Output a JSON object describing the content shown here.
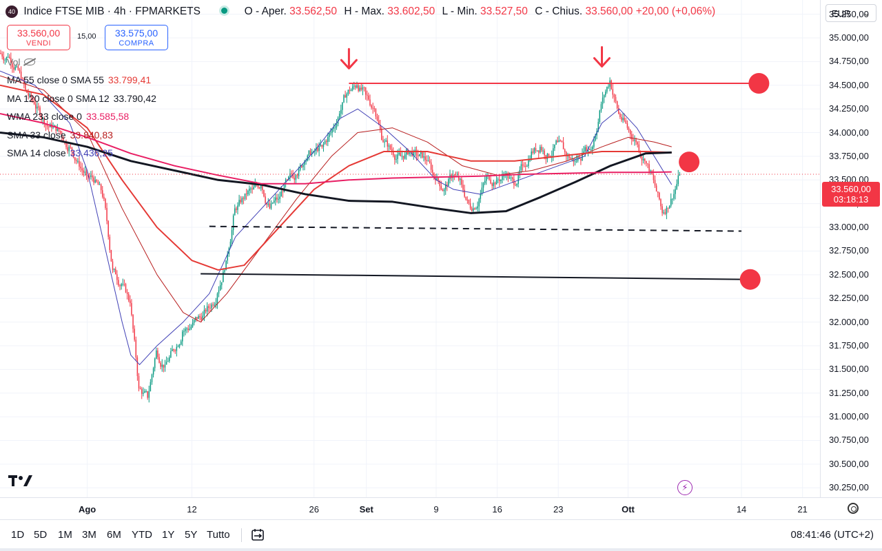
{
  "header": {
    "logo_text": "40",
    "symbol": "Indice FTSE MIB · 4h · FPMARKETS",
    "ohlc": [
      {
        "k": "O - Aper.",
        "v": "33.562,50"
      },
      {
        "k": "H - Max.",
        "v": "33.602,50"
      },
      {
        "k": "L - Min.",
        "v": "33.527,50"
      },
      {
        "k": "C - Chius.",
        "v": "33.560,00"
      }
    ],
    "change": "+20,00 (+0,06%)"
  },
  "trade": {
    "sell_price": "33.560,00",
    "sell_label": "VENDI",
    "spread": "15,00",
    "buy_price": "33.575,00",
    "buy_label": "COMPRA"
  },
  "legend": {
    "vol_label": "Vol",
    "indicators": [
      {
        "label": "MA 55 close 0 SMA 55",
        "value": "33.799,41",
        "color": "#e53935"
      },
      {
        "label": "MA 120 close 0 SMA 12",
        "value": "33.790,42",
        "color": "#131722"
      },
      {
        "label": "WMA 233 close 0",
        "value": "33.585,58",
        "color": "#e91e63"
      },
      {
        "label": "SMA 33 close",
        "value": "33.840,83",
        "color": "#b71c1c"
      },
      {
        "label": "SMA 14 close",
        "value": "33.436,25",
        "color": "#3f3fb5"
      }
    ]
  },
  "axis": {
    "currency": "EUR",
    "last_price": "33.560,00",
    "countdown": "03:18:13",
    "time_labels": [
      {
        "t": "Ago",
        "day": 31,
        "month": true
      },
      {
        "t": "12",
        "day": 43,
        "month": false
      },
      {
        "t": "26",
        "day": 57,
        "month": false
      },
      {
        "t": "Set",
        "day": 63,
        "month": true
      },
      {
        "t": "9",
        "day": 71,
        "month": false
      },
      {
        "t": "16",
        "day": 78,
        "month": false
      },
      {
        "t": "23",
        "day": 85,
        "month": false
      },
      {
        "t": "Ott",
        "day": 93,
        "month": true
      },
      {
        "t": "14",
        "day": 106,
        "month": false
      },
      {
        "t": "21",
        "day": 113,
        "month": false
      }
    ]
  },
  "toolbar": {
    "ranges": [
      "1D",
      "5D",
      "1M",
      "3M",
      "6M",
      "YTD",
      "1Y",
      "5Y",
      "Tutto"
    ],
    "clock": "08:41:46 (UTC+2)"
  },
  "colors": {
    "up": "#089981",
    "down": "#f23645",
    "accent": "#2962ff"
  },
  "chart_data": {
    "type": "candlestick",
    "title": "Indice FTSE MIB · 4h · FPMARKETS",
    "y_ticks": [
      30250,
      30500,
      30750,
      31000,
      31250,
      31500,
      31750,
      32000,
      32250,
      32500,
      32750,
      33000,
      33250,
      33500,
      33750,
      34000,
      34250,
      34500,
      34750,
      35000,
      35250
    ],
    "ylim": [
      30150,
      35400
    ],
    "xlim": [
      21,
      115
    ],
    "x_unit": "calendar days counted from 1 Jul (Ago = 31)",
    "candles_daily_close": [
      [
        21,
        34800
      ],
      [
        22,
        34700
      ],
      [
        23,
        34450
      ],
      [
        24,
        34300
      ],
      [
        25,
        34150
      ],
      [
        26,
        34050
      ],
      [
        27,
        34000
      ],
      [
        28,
        33850
      ],
      [
        29,
        33700
      ],
      [
        30,
        33550
      ],
      [
        31,
        33500
      ],
      [
        32,
        33300
      ],
      [
        33,
        32550
      ],
      [
        34,
        32400
      ],
      [
        35,
        32200
      ],
      [
        36,
        31300
      ],
      [
        37,
        31200
      ],
      [
        38,
        31700
      ],
      [
        39,
        31550
      ],
      [
        40,
        31700
      ],
      [
        41,
        31900
      ],
      [
        42,
        31950
      ],
      [
        43,
        32050
      ],
      [
        44,
        32150
      ],
      [
        45,
        32300
      ],
      [
        46,
        32650
      ],
      [
        47,
        33200
      ],
      [
        48,
        33300
      ],
      [
        49,
        33400
      ],
      [
        50,
        33450
      ],
      [
        51,
        33200
      ],
      [
        52,
        33300
      ],
      [
        53,
        33500
      ],
      [
        54,
        33550
      ],
      [
        55,
        33700
      ],
      [
        56,
        33800
      ],
      [
        57,
        33850
      ],
      [
        58,
        34000
      ],
      [
        59,
        34200
      ],
      [
        60,
        34450
      ],
      [
        61,
        34500
      ],
      [
        62,
        34400
      ],
      [
        63,
        34250
      ],
      [
        64,
        33900
      ],
      [
        65,
        33800
      ],
      [
        66,
        33750
      ],
      [
        67,
        33800
      ],
      [
        68,
        33750
      ],
      [
        69,
        33700
      ],
      [
        70,
        33500
      ],
      [
        71,
        33400
      ],
      [
        72,
        33550
      ],
      [
        73,
        33450
      ],
      [
        74,
        33200
      ],
      [
        75,
        33300
      ],
      [
        76,
        33550
      ],
      [
        77,
        33500
      ],
      [
        78,
        33550
      ],
      [
        79,
        33450
      ],
      [
        80,
        33650
      ],
      [
        81,
        33800
      ],
      [
        82,
        33850
      ],
      [
        83,
        33750
      ],
      [
        84,
        33900
      ],
      [
        85,
        33750
      ],
      [
        86,
        33700
      ],
      [
        87,
        33800
      ],
      [
        88,
        33850
      ],
      [
        89,
        34300
      ],
      [
        90,
        34550
      ],
      [
        91,
        34200
      ],
      [
        92,
        34050
      ],
      [
        93,
        33900
      ],
      [
        94,
        33700
      ],
      [
        95,
        33500
      ],
      [
        96,
        33150
      ],
      [
        97,
        33300
      ],
      [
        98,
        33560
      ]
    ],
    "series": [
      {
        "name": "SMA 14 close",
        "color": "#3f3fb5",
        "points": [
          [
            21,
            34650
          ],
          [
            25,
            34500
          ],
          [
            29,
            34100
          ],
          [
            31,
            33600
          ],
          [
            33,
            32800
          ],
          [
            35,
            32000
          ],
          [
            36,
            31650
          ],
          [
            37,
            31550
          ],
          [
            39,
            31750
          ],
          [
            42,
            32000
          ],
          [
            45,
            32300
          ],
          [
            48,
            32900
          ],
          [
            51,
            33200
          ],
          [
            54,
            33500
          ],
          [
            57,
            33800
          ],
          [
            60,
            34150
          ],
          [
            62,
            34250
          ],
          [
            65,
            34050
          ],
          [
            68,
            33800
          ],
          [
            71,
            33500
          ],
          [
            73,
            33400
          ],
          [
            76,
            33350
          ],
          [
            79,
            33450
          ],
          [
            82,
            33550
          ],
          [
            85,
            33650
          ],
          [
            88,
            33750
          ],
          [
            90,
            34100
          ],
          [
            92,
            34250
          ],
          [
            94,
            34050
          ],
          [
            96,
            33750
          ],
          [
            98,
            33450
          ]
        ]
      },
      {
        "name": "SMA 33 close",
        "color": "#b71c1c",
        "points": [
          [
            21,
            34600
          ],
          [
            26,
            34450
          ],
          [
            31,
            34000
          ],
          [
            35,
            33200
          ],
          [
            39,
            32500
          ],
          [
            42,
            32100
          ],
          [
            44,
            32000
          ],
          [
            47,
            32300
          ],
          [
            51,
            32800
          ],
          [
            55,
            33300
          ],
          [
            59,
            33750
          ],
          [
            62,
            34000
          ],
          [
            66,
            34050
          ],
          [
            70,
            33900
          ],
          [
            74,
            33650
          ],
          [
            78,
            33550
          ],
          [
            82,
            33600
          ],
          [
            86,
            33700
          ],
          [
            90,
            33850
          ],
          [
            93,
            33950
          ],
          [
            96,
            33900
          ],
          [
            98,
            33850
          ]
        ]
      },
      {
        "name": "MA 55 close 0 SMA 55",
        "color": "#e53935",
        "points": [
          [
            21,
            34500
          ],
          [
            26,
            34400
          ],
          [
            31,
            34050
          ],
          [
            35,
            33500
          ],
          [
            39,
            33000
          ],
          [
            43,
            32650
          ],
          [
            46,
            32550
          ],
          [
            49,
            32600
          ],
          [
            53,
            33000
          ],
          [
            57,
            33400
          ],
          [
            61,
            33650
          ],
          [
            65,
            33800
          ],
          [
            70,
            33800
          ],
          [
            75,
            33700
          ],
          [
            80,
            33700
          ],
          [
            85,
            33750
          ],
          [
            90,
            33800
          ],
          [
            95,
            33800
          ],
          [
            98,
            33790
          ]
        ]
      },
      {
        "name": "MA 120 close 0 SMA 12",
        "color": "#131722",
        "points": [
          [
            21,
            34000
          ],
          [
            26,
            33950
          ],
          [
            31,
            33850
          ],
          [
            36,
            33700
          ],
          [
            41,
            33600
          ],
          [
            46,
            33500
          ],
          [
            51,
            33450
          ],
          [
            56,
            33350
          ],
          [
            61,
            33280
          ],
          [
            66,
            33270
          ],
          [
            71,
            33200
          ],
          [
            75,
            33150
          ],
          [
            79,
            33170
          ],
          [
            83,
            33320
          ],
          [
            87,
            33480
          ],
          [
            91,
            33650
          ],
          [
            95,
            33780
          ],
          [
            98,
            33790
          ]
        ]
      },
      {
        "name": "WMA 233 close 0",
        "color": "#e91e63",
        "points": [
          [
            21,
            34200
          ],
          [
            26,
            34100
          ],
          [
            31,
            33950
          ],
          [
            36,
            33780
          ],
          [
            41,
            33650
          ],
          [
            46,
            33550
          ],
          [
            51,
            33460
          ],
          [
            56,
            33460
          ],
          [
            61,
            33500
          ],
          [
            66,
            33520
          ],
          [
            71,
            33530
          ],
          [
            76,
            33540
          ],
          [
            81,
            33560
          ],
          [
            86,
            33570
          ],
          [
            91,
            33580
          ],
          [
            95,
            33580
          ],
          [
            98,
            33585
          ]
        ]
      }
    ],
    "lines": [
      {
        "kind": "resistance",
        "color": "#f23645",
        "from": [
          61,
          34520
        ],
        "to": [
          108,
          34520
        ]
      },
      {
        "kind": "support-dashed",
        "color": "#131722",
        "from": [
          45,
          33010
        ],
        "to": [
          106,
          32960
        ]
      },
      {
        "kind": "support",
        "color": "#131722",
        "from": [
          44,
          32510
        ],
        "to": [
          107,
          32450
        ]
      }
    ],
    "markers": [
      {
        "kind": "arrow-down",
        "color": "#f23645",
        "x": 61,
        "y": 34780
      },
      {
        "kind": "arrow-down",
        "color": "#f23645",
        "x": 90,
        "y": 34800
      },
      {
        "kind": "circle",
        "color": "#f23645",
        "x": 108,
        "y": 34520
      },
      {
        "kind": "circle",
        "color": "#f23645",
        "x": 100,
        "y": 33690
      },
      {
        "kind": "circle",
        "color": "#f23645",
        "x": 107,
        "y": 32450
      }
    ],
    "last_price_line": 33560
  }
}
